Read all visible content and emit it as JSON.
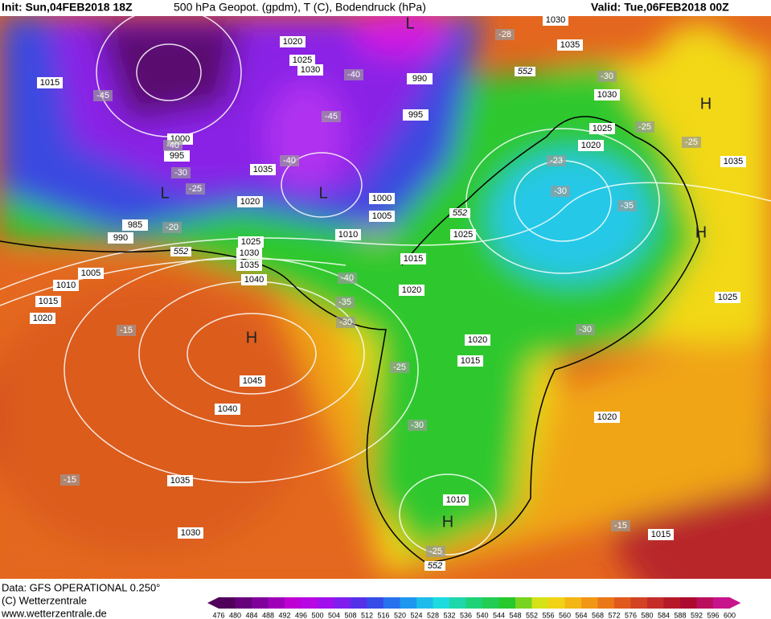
{
  "header": {
    "init": "Init: Sun,04FEB2018 18Z",
    "product": "500 hPa Geopot. (gpdm), T (C), Bodendruck (hPa)",
    "valid": "Valid: Tue,06FEB2018 00Z"
  },
  "footer": {
    "data": "Data: GFS OPERATIONAL 0.250°",
    "copyright": "(C) Wetterzentrale",
    "url": "www.wetterzentrale.de"
  },
  "colorbar": {
    "labels": [
      "476",
      "480",
      "484",
      "488",
      "492",
      "496",
      "500",
      "504",
      "508",
      "512",
      "516",
      "520",
      "524",
      "528",
      "532",
      "536",
      "540",
      "544",
      "548",
      "552",
      "556",
      "560",
      "564",
      "568",
      "572",
      "576",
      "580",
      "584",
      "588",
      "592",
      "596",
      "600"
    ]
  },
  "map": {
    "isobar_labels": [
      "1030",
      "1035",
      "1020",
      "1025",
      "1030",
      "990",
      "995",
      "1015",
      "1030",
      "1025",
      "1020",
      "1035",
      "1000",
      "995",
      "1035",
      "1020",
      "1000",
      "1005",
      "1010",
      "985",
      "990",
      "1025",
      "1025",
      "1030",
      "1035",
      "1040",
      "1005",
      "1010",
      "1015",
      "1020",
      "1015",
      "1020",
      "1025",
      "1020",
      "1015",
      "1045",
      "1040",
      "1020",
      "1035",
      "1010",
      "1030",
      "1015"
    ],
    "temperature_labels": [
      "-45",
      "-40",
      "-45",
      "-28",
      "-30",
      "-25",
      "-25",
      "-23",
      "-30",
      "-35",
      "-40",
      "-30",
      "-25",
      "-20",
      "-40",
      "-35",
      "-30",
      "-15",
      "-25",
      "-30",
      "-30",
      "-15",
      "-15",
      "-25",
      "-40"
    ],
    "pressure_centers": [
      "L",
      "L",
      "L",
      "H",
      "H",
      "H",
      "H"
    ],
    "contour_labels": [
      "552",
      "552",
      "552",
      "552"
    ]
  }
}
